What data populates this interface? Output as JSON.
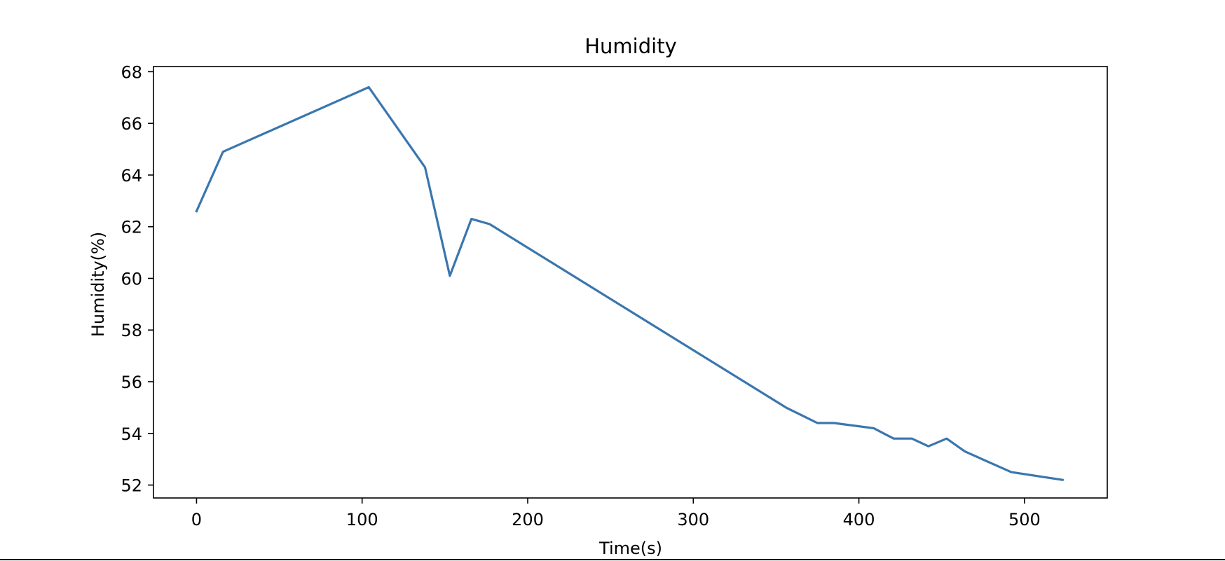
{
  "chart_data": {
    "type": "line",
    "title": "Humidity",
    "xlabel": "Time(s)",
    "ylabel": "Humidity(%)",
    "xlim": [
      -26,
      550
    ],
    "ylim": [
      51.5,
      68.2
    ],
    "xticks": [
      0,
      100,
      200,
      300,
      400,
      500
    ],
    "yticks": [
      52,
      54,
      56,
      58,
      60,
      62,
      64,
      66,
      68
    ],
    "grid": false,
    "legend": "none",
    "series": [
      {
        "color": "#3a76ae",
        "x": [
          0,
          16,
          104,
          138,
          153,
          166,
          177,
          356,
          375,
          385,
          409,
          421,
          432,
          442,
          453,
          464,
          492,
          523
        ],
        "y": [
          62.6,
          64.9,
          67.4,
          64.3,
          60.1,
          62.3,
          62.1,
          55.0,
          54.4,
          54.4,
          54.2,
          53.8,
          53.8,
          53.5,
          53.8,
          53.3,
          52.5,
          52.2
        ]
      }
    ]
  }
}
